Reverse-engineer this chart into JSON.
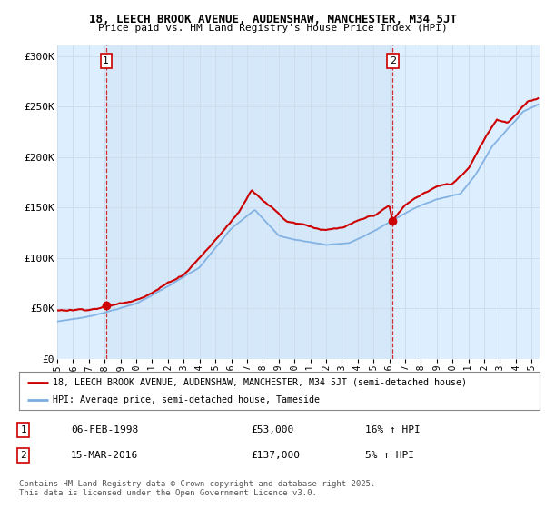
{
  "title_line1": "18, LEECH BROOK AVENUE, AUDENSHAW, MANCHESTER, M34 5JT",
  "title_line2": "Price paid vs. HM Land Registry's House Price Index (HPI)",
  "ylabel_ticks": [
    "£0",
    "£50K",
    "£100K",
    "£150K",
    "£200K",
    "£250K",
    "£300K"
  ],
  "ytick_values": [
    0,
    50000,
    100000,
    150000,
    200000,
    250000,
    300000
  ],
  "ylim": [
    0,
    310000
  ],
  "xlim_start": 1995.0,
  "xlim_end": 2025.5,
  "sale1": {
    "date_num": 1998.09,
    "price": 53000,
    "label": "1",
    "date_str": "06-FEB-1998",
    "price_str": "£53,000",
    "hpi_str": "16% ↑ HPI"
  },
  "sale2": {
    "date_num": 2016.21,
    "price": 137000,
    "label": "2",
    "date_str": "15-MAR-2016",
    "price_str": "£137,000",
    "hpi_str": "5% ↑ HPI"
  },
  "line_color_price": "#cc0000",
  "line_color_hpi": "#7aade0",
  "vline_color": "#cc0000",
  "marker_color": "#cc0000",
  "grid_color": "#ccddee",
  "shade_color": "#ddeeff",
  "background_color": "#ffffff",
  "legend_label_price": "18, LEECH BROOK AVENUE, AUDENSHAW, MANCHESTER, M34 5JT (semi-detached house)",
  "legend_label_hpi": "HPI: Average price, semi-detached house, Tameside",
  "footnote": "Contains HM Land Registry data © Crown copyright and database right 2025.\nThis data is licensed under the Open Government Licence v3.0.",
  "xtick_years": [
    1995,
    1996,
    1997,
    1998,
    1999,
    2000,
    2001,
    2002,
    2003,
    2004,
    2005,
    2006,
    2007,
    2008,
    2009,
    2010,
    2011,
    2012,
    2013,
    2014,
    2015,
    2016,
    2017,
    2018,
    2019,
    2020,
    2021,
    2022,
    2023,
    2024,
    2025
  ]
}
